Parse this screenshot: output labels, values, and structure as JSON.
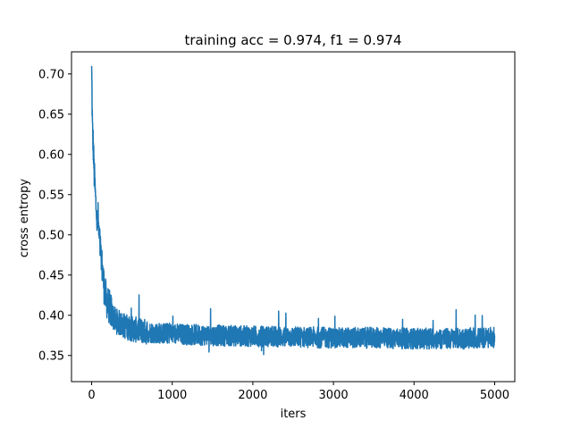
{
  "chart_data": {
    "type": "line",
    "title": "training acc = 0.974, f1 = 0.974",
    "xlabel": "iters",
    "ylabel": "cross entropy",
    "xlim": [
      -250,
      5250
    ],
    "ylim": [
      0.3175,
      0.7275
    ],
    "x_ticks": [
      0,
      1000,
      2000,
      3000,
      4000,
      5000
    ],
    "x_tick_labels": [
      "0",
      "1000",
      "2000",
      "3000",
      "4000",
      "5000"
    ],
    "y_ticks": [
      0.35,
      0.4,
      0.45,
      0.5,
      0.55,
      0.6,
      0.65,
      0.7
    ],
    "y_tick_labels": [
      "0.35",
      "0.40",
      "0.45",
      "0.50",
      "0.55",
      "0.60",
      "0.65",
      "0.70"
    ],
    "grid": false,
    "series": [
      {
        "color": "#1f77b4",
        "x": [
          0,
          10,
          20,
          30,
          40,
          50,
          60,
          70,
          80,
          90,
          100,
          110,
          120,
          130,
          140,
          150,
          160,
          170,
          180,
          200,
          220,
          240,
          260,
          280,
          300,
          350,
          400,
          450,
          500,
          600,
          700,
          800,
          1000,
          1200,
          1500,
          2000,
          2500,
          3000,
          3500,
          4000,
          4500,
          5000
        ],
        "values": [
          0.71,
          0.63,
          0.61,
          0.58,
          0.56,
          0.54,
          0.53,
          0.51,
          0.52,
          0.5,
          0.49,
          0.48,
          0.47,
          0.46,
          0.45,
          0.44,
          0.43,
          0.425,
          0.42,
          0.415,
          0.41,
          0.405,
          0.4,
          0.395,
          0.393,
          0.39,
          0.387,
          0.385,
          0.383,
          0.381,
          0.379,
          0.378,
          0.377,
          0.376,
          0.375,
          0.374,
          0.373,
          0.372,
          0.372,
          0.371,
          0.371,
          0.372
        ]
      }
    ]
  }
}
